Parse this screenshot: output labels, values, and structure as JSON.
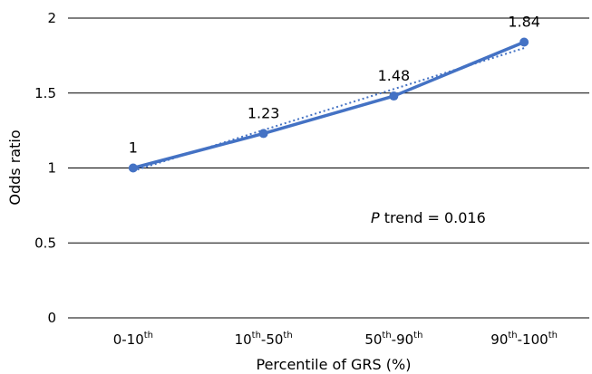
{
  "chart_data": {
    "type": "line",
    "xlabel": "Percentile of GRS (%)",
    "ylabel": "Odds ratio",
    "ylim": [
      0,
      2
    ],
    "yticks": [
      "0",
      "0.5",
      "1",
      "1.5",
      "2"
    ],
    "grid": "horizontal",
    "categories": [
      {
        "base": "0-10",
        "sup": "th"
      },
      {
        "base": "10",
        "sup": "th",
        "mid": "-50",
        "sup2": "th"
      },
      {
        "base": "50",
        "sup": "th",
        "mid": "-90",
        "sup2": "th"
      },
      {
        "base": "90",
        "sup": "th",
        "mid": "-100",
        "sup2": "th"
      }
    ],
    "series": [
      {
        "values": [
          1,
          1.23,
          1.48,
          1.84
        ],
        "labels": [
          "1",
          "1.23",
          "1.48",
          "1.84"
        ],
        "color": "#4472C4"
      }
    ],
    "trendline": {
      "style": "dotted",
      "color": "#4472C4",
      "start": 0.98,
      "end": 1.8
    },
    "annotation": {
      "italic": "P",
      "text": " trend = 0.016"
    }
  }
}
